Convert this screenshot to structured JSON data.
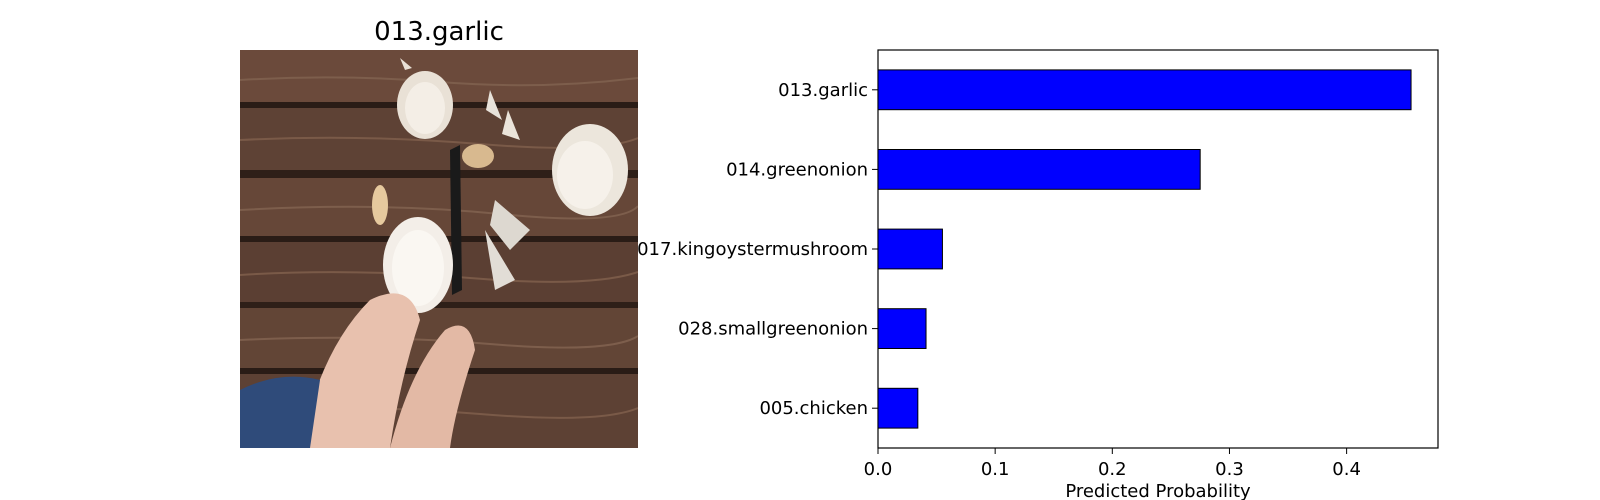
{
  "image_panel": {
    "title": "013.garlic",
    "colors": {
      "wood_dark": "#3e2a22",
      "wood_mid": "#5c4134",
      "wood_light": "#7a5a48",
      "garlic": "#f1ece6",
      "skin": "#e8c1ae",
      "sleeve": "#2f4b7a"
    }
  },
  "chart_data": {
    "type": "bar",
    "orientation": "horizontal",
    "categories": [
      "013.garlic",
      "014.greenonion",
      "017.kingoystermushroom",
      "028.smallgreenonion",
      "005.chicken"
    ],
    "values": [
      0.455,
      0.275,
      0.055,
      0.041,
      0.034
    ],
    "xlabel": "Predicted Probability",
    "ylabel": "",
    "xlim": [
      0,
      0.478
    ],
    "xticks": [
      0.0,
      0.1,
      0.2,
      0.3,
      0.4
    ],
    "xtick_labels": [
      "0.0",
      "0.1",
      "0.2",
      "0.3",
      "0.4"
    ],
    "bar_color": "#0000ff",
    "edge_color": "#000000",
    "grid": false
  }
}
